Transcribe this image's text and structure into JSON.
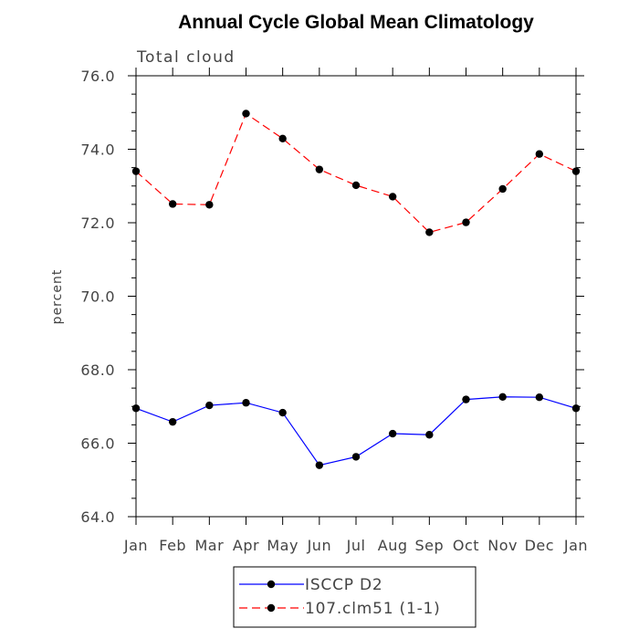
{
  "chart_data": {
    "type": "line",
    "title": "Annual Cycle Global Mean Climatology",
    "subtitle": "Total cloud",
    "ylabel": "percent",
    "xlabel": "",
    "categories": [
      "Jan",
      "Feb",
      "Mar",
      "Apr",
      "May",
      "Jun",
      "Jul",
      "Aug",
      "Sep",
      "Oct",
      "Nov",
      "Dec",
      "Jan"
    ],
    "ylim": [
      64.0,
      76.0
    ],
    "yticks": [
      "64.0",
      "66.0",
      "68.0",
      "70.0",
      "72.0",
      "74.0",
      "76.0"
    ],
    "grid": false,
    "legend_position": "bottom",
    "series": [
      {
        "name": "ISCCP D2",
        "color": "#0000ff",
        "dash": "solid",
        "marker": "circle",
        "values": [
          66.95,
          66.58,
          67.03,
          67.1,
          66.83,
          65.4,
          65.63,
          66.26,
          66.23,
          67.19,
          67.26,
          67.25,
          66.95
        ]
      },
      {
        "name": "107.clm51 (1-1)",
        "color": "#ff0000",
        "dash": "dashed",
        "marker": "circle",
        "values": [
          73.4,
          72.51,
          72.49,
          74.97,
          74.29,
          73.45,
          73.02,
          72.71,
          71.74,
          72.01,
          72.92,
          73.87,
          73.4
        ]
      }
    ]
  }
}
